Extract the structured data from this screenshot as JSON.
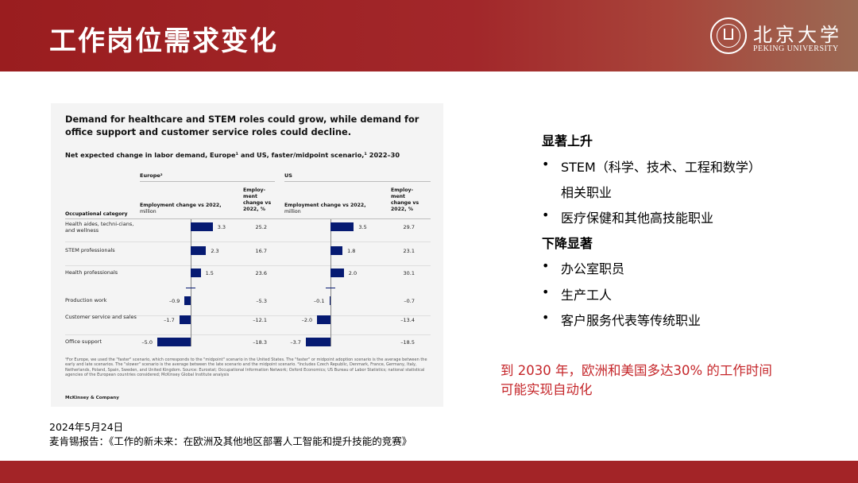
{
  "slide": {
    "title": "工作岗位需求变化",
    "logo_cn": "北京大学",
    "logo_en": "PEKING UNIVERSITY"
  },
  "figure": {
    "title": "Demand for healthcare and STEM roles could grow, while demand for office support and customer service roles could decline.",
    "subtitle": "Net expected change in labor demand, Europe¹ and US, faster/midpoint scenario,¹ 2022–30",
    "regions": [
      "Europe²",
      "US"
    ],
    "col_category": "Occupational category",
    "col_emp_label": "Employment change vs 2022,",
    "col_emp_unit": "million",
    "col_pct_label": "Employ-ment change vs 2022, %",
    "footnote": "¹For Europe, we used the \"faster\" scenario, which corresponds to the \"midpoint\" scenario in the United States. The \"faster\" or midpoint adoption scenario is the average between the early and late scenarios. The \"slower\" scenario is the average between the late scenario and the midpoint scenario. ²Includes Czech Republic, Denmark, France, Germany, Italy, Netherlands, Poland, Spain, Sweden, and United Kingdom. Source: Eurostat; Occupational Information Network; Oxford Economics; US Bureau of Labor Statistics; national statistical agencies of the European countries considered; McKinsey Global Institute analysis",
    "source_brand": "McKinsey & Company"
  },
  "chart_data": {
    "type": "bar",
    "title": "Demand for healthcare and STEM roles could grow, while demand for office support and customer service roles could decline.",
    "subtitle": "Net expected change in labor demand, Europe¹ and US, faster/midpoint scenario,¹ 2022–30",
    "categories": [
      "Health aides, techni-cians, and wellness",
      "STEM professionals",
      "Health professionals",
      "Production work",
      "Customer service and sales",
      "Office support"
    ],
    "series": [
      {
        "name": "Europe²",
        "values": [
          3.3,
          2.3,
          1.5,
          -0.9,
          -1.7,
          -5.0
        ],
        "labels": [
          "3.3",
          "2.3",
          "1.5",
          "–0.9",
          "–1.7",
          "–5.0"
        ],
        "pct": [
          "25.2",
          "16.7",
          "23.6",
          "–5.3",
          "–12.1",
          "–18.3"
        ]
      },
      {
        "name": "US",
        "values": [
          3.5,
          1.8,
          2.0,
          -0.1,
          -2.0,
          -3.7
        ],
        "labels": [
          "3.5",
          "1.8",
          "2.0",
          "–0.1",
          "–2.0",
          "–3.7"
        ],
        "pct": [
          "29.7",
          "23.1",
          "30.1",
          "–0.7",
          "–13.4",
          "–18.5"
        ]
      }
    ],
    "xlabel": "Employment change vs 2022, million",
    "colors": {
      "bar": "#061a72"
    }
  },
  "caption": {
    "date": "2024年5月24日",
    "report": "麦肯锡报告：《工作的新未来：在欧洲及其他地区部署人工智能和提升技能的竞赛》"
  },
  "right": {
    "rise_heading": "显著上升",
    "rise_items": [
      "STEM（科学、技术、工程和数学）",
      "医疗保健和其他高技能职业"
    ],
    "rise_item1_cont": "相关职业",
    "fall_heading": "下降显著",
    "fall_items": [
      "办公室职员",
      "生产工人",
      "客户服务代表等传统职业"
    ],
    "bullet_symbol": "•",
    "note_line1": "到 2030 年，欧洲和美国多达30% 的工作时间",
    "note_line2": "可能实现自动化"
  },
  "colors": {
    "brand_red": "#a32427",
    "note_red": "#c5262a"
  }
}
